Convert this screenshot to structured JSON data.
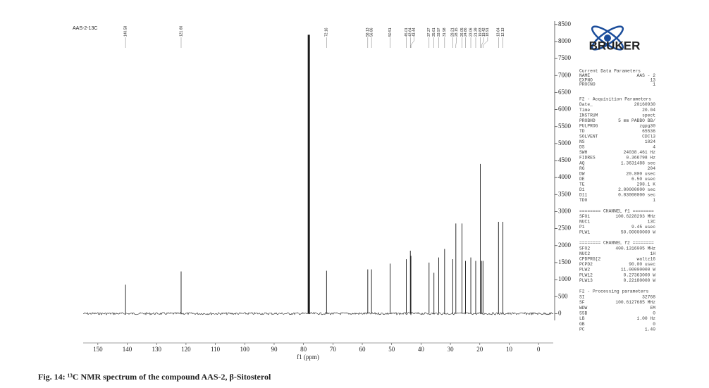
{
  "chart_data": {
    "type": "nmr-spectrum",
    "title": "AAS-2-13C",
    "x_label": "f1 (ppm)",
    "xlim": [
      155,
      -5
    ],
    "xticks": [
      150,
      140,
      130,
      120,
      110,
      100,
      90,
      80,
      70,
      60,
      50,
      40,
      30,
      20,
      10,
      0
    ],
    "ylim": [
      -200,
      8600
    ],
    "yticks": [
      0,
      500,
      1000,
      1500,
      2000,
      2500,
      3000,
      3500,
      4000,
      4500,
      5000,
      5500,
      6000,
      6500,
      7000,
      7500,
      8000,
      8500
    ],
    "color": "#1a1a1a",
    "x": [
      140.58,
      121.66,
      72.16,
      58.13,
      56.86,
      50.51,
      45.01,
      43.64,
      43.44,
      37.27,
      35.61,
      33.97,
      31.98,
      29.21,
      28.15,
      26.05,
      24.86,
      23.06,
      21.39,
      19.83,
      19.42,
      18.91,
      13.64,
      12.13
    ],
    "values": [
      850,
      1240,
      1260,
      1300,
      1300,
      1470,
      1600,
      1850,
      1700,
      1500,
      1200,
      1650,
      1900,
      1600,
      2650,
      2650,
      1550,
      1650,
      1550,
      4400,
      1550,
      1550,
      2700,
      2700
    ],
    "solvent_peak": {
      "x": 78.2,
      "value": 8200
    }
  },
  "logo": "BRUKER",
  "parameters": [
    {
      "title": "Current Data Parameters",
      "rows": [
        [
          "NAME",
          "AAS - 2"
        ],
        [
          "EXPNO",
          "13"
        ],
        [
          "PROCNO",
          "1"
        ]
      ]
    },
    {
      "title": "F2 - Acquisition Parameters",
      "rows": [
        [
          "Date_",
          "20160930"
        ],
        [
          "Time",
          "20.04"
        ],
        [
          "INSTRUM",
          "spect"
        ],
        [
          "PROBHD",
          "5 mm PABBO BB/"
        ],
        [
          "PULPROG",
          "zgpg30"
        ],
        [
          "TD",
          "65536"
        ],
        [
          "SOLVENT",
          "CDCl3"
        ],
        [
          "NS",
          "1024"
        ],
        [
          "DS",
          "4"
        ],
        [
          "SWH",
          "24038.461 Hz"
        ],
        [
          "FIDRES",
          "0.366798 Hz"
        ],
        [
          "AQ",
          "1.3631488 sec"
        ],
        [
          "RG",
          "204"
        ],
        [
          "DW",
          "20.800 usec"
        ],
        [
          "DE",
          "6.50 usec"
        ],
        [
          "TE",
          "298.1 K"
        ],
        [
          "D1",
          "2.00000000 sec"
        ],
        [
          "D11",
          "0.03000000 sec"
        ],
        [
          "TD0",
          "1"
        ]
      ]
    },
    {
      "title": "======== CHANNEL f1 ========",
      "rows": [
        [
          "SFO1",
          "100.6228293 MHz"
        ],
        [
          "NUC1",
          "13C"
        ],
        [
          "P1",
          "9.45 usec"
        ],
        [
          "PLW1",
          "50.00000000 W"
        ]
      ]
    },
    {
      "title": "======== CHANNEL f2 ========",
      "rows": [
        [
          "SFO2",
          "400.1316005 MHz"
        ],
        [
          "NUC2",
          "1H"
        ],
        [
          "CPDPRG[2",
          "waltz16"
        ],
        [
          "PCPD2",
          "90.00 usec"
        ],
        [
          "PLW2",
          "11.00000000 W"
        ],
        [
          "PLW12",
          "0.27363000 W"
        ],
        [
          "PLW13",
          "0.22180000 W"
        ]
      ]
    },
    {
      "title": "F2 - Processing parameters",
      "rows": [
        [
          "SI",
          "32768"
        ],
        [
          "SF",
          "100.6127685 MHz"
        ],
        [
          "WDW",
          "EM"
        ],
        [
          "SSB",
          "0"
        ],
        [
          "LB",
          "1.00 Hz"
        ],
        [
          "GB",
          "0"
        ],
        [
          "PC",
          "1.40"
        ]
      ]
    }
  ],
  "caption": "Fig. 14: ¹³C NMR spectrum of the compound AAS-2, β-Sitosterol"
}
